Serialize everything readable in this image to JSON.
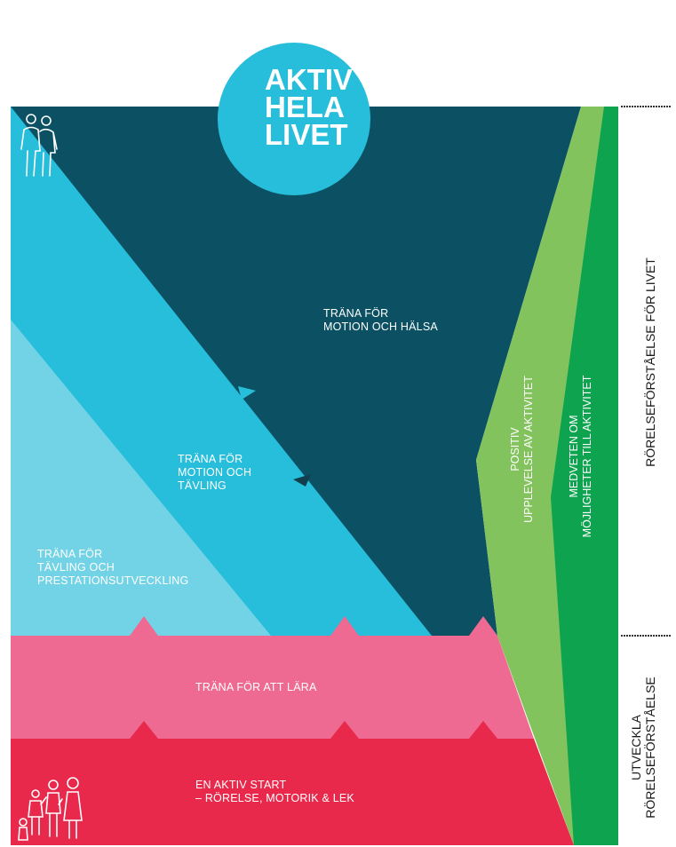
{
  "title": [
    "AKTIV",
    "HELA",
    "LIVET"
  ],
  "stages": {
    "halsa": [
      "TRÄNA FÖR",
      "MOTION OCH HÄLSA"
    ],
    "motion_tavling": [
      "TRÄNA FÖR",
      "MOTION OCH",
      "TÄVLING"
    ],
    "prestation": [
      "TRÄNA FÖR",
      "TÄVLING OCH",
      "PRESTATIONSUTVECKLING"
    ],
    "lara": "TRÄNA FÖR ATT LÄRA",
    "start": [
      "EN AKTIV START",
      "– RÖRELSE, MOTORIK & LEK"
    ]
  },
  "green_labels": {
    "positiv": [
      "POSITIV",
      "UPPLEVELSE AV AKTIVITET"
    ],
    "medveten": [
      "MEDVETEN OM",
      "MÖJLIGHETER TILL AKTIVITET"
    ]
  },
  "side_labels": {
    "livet": "RÖRELSEFÖRSTÅELSE FÖR LIVET",
    "utveckla": [
      "UTVECKLA",
      "RÖRELSEFÖRSTÅELSE"
    ]
  },
  "colors": {
    "dark_teal": "#0b5163",
    "cyan": "#27bedc",
    "light_cyan": "#73d3e6",
    "pink": "#ee6a92",
    "red": "#e8294b",
    "light_green": "#83c35d",
    "dark_green": "#0ea34f",
    "circle": "#27bedc"
  },
  "icons": [
    "elderly-couple-icon",
    "family-children-icon"
  ]
}
